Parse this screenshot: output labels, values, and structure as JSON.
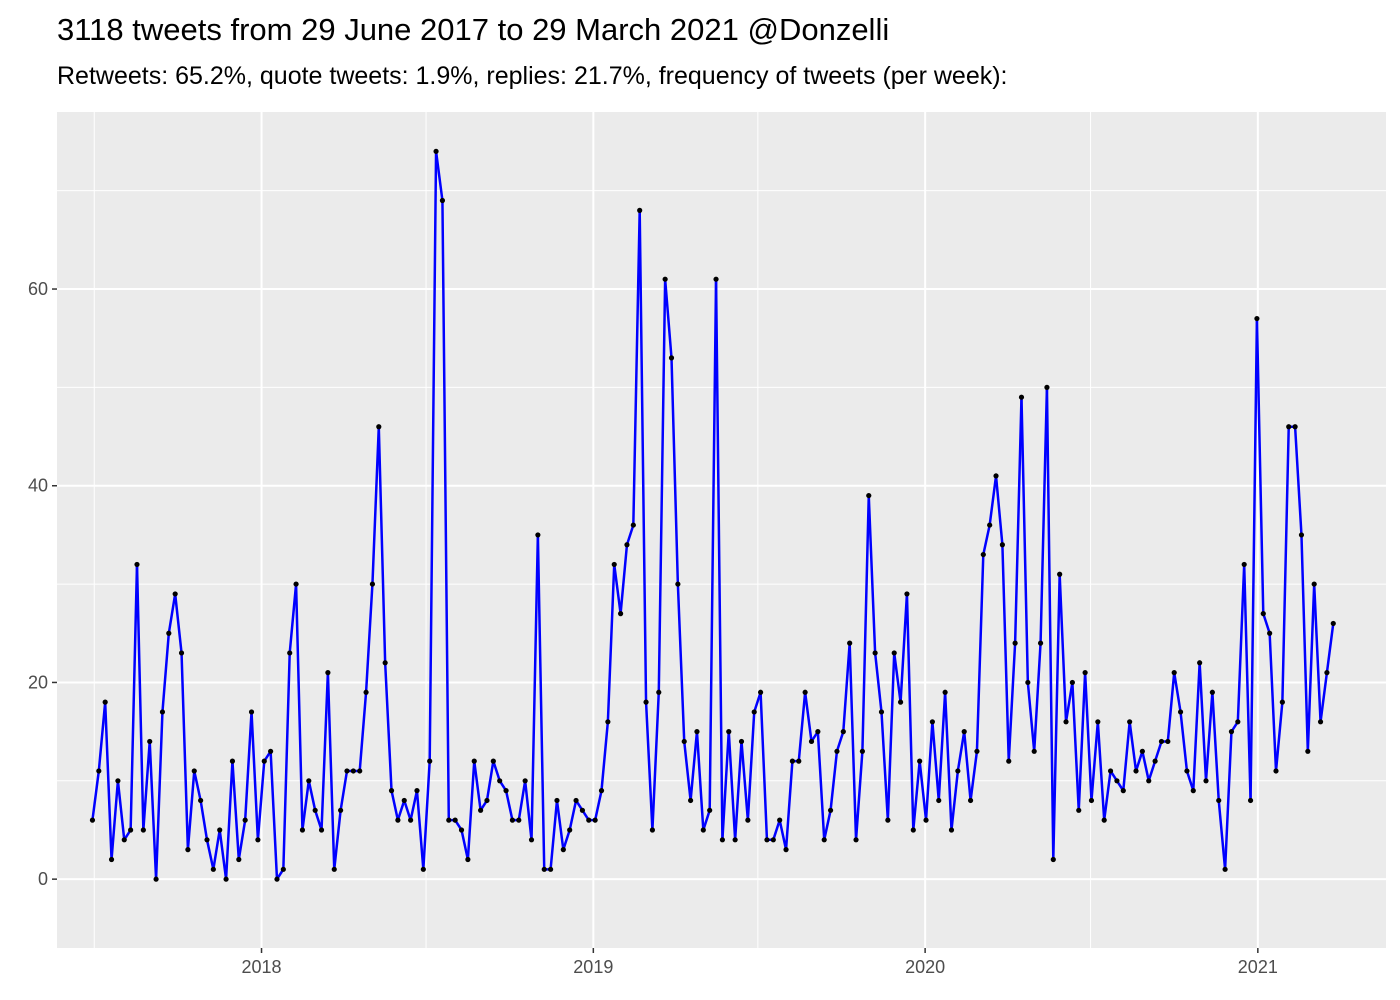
{
  "chart_data": {
    "type": "line",
    "title": "3118 tweets from 29 June 2017 to 29 March 2021 @Donzelli",
    "subtitle": "Retweets: 65.2%, quote tweets: 1.9%, replies: 21.7%, frequency of tweets (per week):",
    "xlabel": "",
    "ylabel": "",
    "x_ticks": [
      "2018",
      "2019",
      "2020",
      "2021"
    ],
    "y_ticks": [
      "0",
      "20",
      "40",
      "60"
    ],
    "xlim": [
      "2017-05-21",
      "2021-05-22"
    ],
    "ylim": [
      -7,
      78
    ],
    "grid": true,
    "colors": {
      "line": "#0000ff",
      "point": "#000000",
      "panel": "#ebebeb",
      "grid": "#ffffff"
    },
    "x": [
      "2017-06-29",
      "2017-07-06",
      "2017-07-13",
      "2017-07-20",
      "2017-07-27",
      "2017-08-03",
      "2017-08-10",
      "2017-08-17",
      "2017-08-24",
      "2017-08-31",
      "2017-09-07",
      "2017-09-14",
      "2017-09-21",
      "2017-09-28",
      "2017-10-05",
      "2017-10-12",
      "2017-10-19",
      "2017-10-26",
      "2017-11-02",
      "2017-11-09",
      "2017-11-16",
      "2017-11-23",
      "2017-11-30",
      "2017-12-07",
      "2017-12-14",
      "2017-12-21",
      "2017-12-28",
      "2018-01-04",
      "2018-01-11",
      "2018-01-18",
      "2018-01-25",
      "2018-02-01",
      "2018-02-08",
      "2018-02-15",
      "2018-02-22",
      "2018-03-01",
      "2018-03-08",
      "2018-03-15",
      "2018-03-22",
      "2018-03-29",
      "2018-04-05",
      "2018-04-12",
      "2018-04-19",
      "2018-04-26",
      "2018-05-03",
      "2018-05-10",
      "2018-05-17",
      "2018-05-24",
      "2018-05-31",
      "2018-06-07",
      "2018-06-14",
      "2018-06-21",
      "2018-06-28",
      "2018-07-05",
      "2018-07-12",
      "2018-07-19",
      "2018-07-26",
      "2018-08-02",
      "2018-08-09",
      "2018-08-16",
      "2018-08-23",
      "2018-08-30",
      "2018-09-06",
      "2018-09-13",
      "2018-09-20",
      "2018-09-27",
      "2018-10-04",
      "2018-10-11",
      "2018-10-18",
      "2018-10-25",
      "2018-11-01",
      "2018-11-08",
      "2018-11-15",
      "2018-11-22",
      "2018-11-29",
      "2018-12-06",
      "2018-12-13",
      "2018-12-20",
      "2018-12-27",
      "2019-01-03",
      "2019-01-10",
      "2019-01-17",
      "2019-01-24",
      "2019-01-31",
      "2019-02-07",
      "2019-02-14",
      "2019-02-21",
      "2019-02-28",
      "2019-03-07",
      "2019-03-14",
      "2019-03-21",
      "2019-03-28",
      "2019-04-04",
      "2019-04-11",
      "2019-04-18",
      "2019-04-25",
      "2019-05-02",
      "2019-05-09",
      "2019-05-16",
      "2019-05-23",
      "2019-05-30",
      "2019-06-06",
      "2019-06-13",
      "2019-06-20",
      "2019-06-27",
      "2019-07-04",
      "2019-07-11",
      "2019-07-18",
      "2019-07-25",
      "2019-08-01",
      "2019-08-08",
      "2019-08-15",
      "2019-08-22",
      "2019-08-29",
      "2019-09-05",
      "2019-09-12",
      "2019-09-19",
      "2019-09-26",
      "2019-10-03",
      "2019-10-10",
      "2019-10-17",
      "2019-10-24",
      "2019-10-31",
      "2019-11-07",
      "2019-11-14",
      "2019-11-21",
      "2019-11-28",
      "2019-12-05",
      "2019-12-12",
      "2019-12-19",
      "2019-12-26",
      "2020-01-02",
      "2020-01-09",
      "2020-01-16",
      "2020-01-23",
      "2020-01-30",
      "2020-02-06",
      "2020-02-13",
      "2020-02-20",
      "2020-02-27",
      "2020-03-05",
      "2020-03-12",
      "2020-03-19",
      "2020-03-26",
      "2020-04-02",
      "2020-04-09",
      "2020-04-16",
      "2020-04-23",
      "2020-04-30",
      "2020-05-07",
      "2020-05-14",
      "2020-05-21",
      "2020-05-28",
      "2020-06-04",
      "2020-06-11",
      "2020-06-18",
      "2020-06-25",
      "2020-07-02",
      "2020-07-09",
      "2020-07-16",
      "2020-07-23",
      "2020-07-30",
      "2020-08-06",
      "2020-08-13",
      "2020-08-20",
      "2020-08-27",
      "2020-09-03",
      "2020-09-10",
      "2020-09-17",
      "2020-09-24",
      "2020-10-01",
      "2020-10-08",
      "2020-10-15",
      "2020-10-22",
      "2020-10-29",
      "2020-11-05",
      "2020-11-12",
      "2020-11-19",
      "2020-11-26",
      "2020-12-03",
      "2020-12-10",
      "2020-12-17",
      "2020-12-24",
      "2020-12-31",
      "2021-01-07",
      "2021-01-14",
      "2021-01-21",
      "2021-01-28",
      "2021-02-04",
      "2021-02-11",
      "2021-02-18",
      "2021-02-25",
      "2021-03-04",
      "2021-03-11",
      "2021-03-18",
      "2021-03-25"
    ],
    "series": [
      {
        "values": [
          6,
          11,
          18,
          2,
          10,
          4,
          5,
          32,
          5,
          14,
          0,
          17,
          25,
          29,
          23,
          3,
          11,
          8,
          4,
          1,
          5,
          0,
          12,
          2,
          6,
          17,
          4,
          12,
          13,
          0,
          1,
          23,
          30,
          5,
          10,
          7,
          5,
          21,
          1,
          7,
          11,
          11,
          11,
          19,
          30,
          46,
          22,
          9,
          6,
          8,
          6,
          9,
          1,
          12,
          74,
          69,
          6,
          6,
          5,
          2,
          12,
          7,
          8,
          12,
          10,
          9,
          6,
          6,
          10,
          4,
          35,
          1,
          1,
          8,
          3,
          5,
          8,
          7,
          6,
          6,
          9,
          16,
          32,
          27,
          34,
          36,
          68,
          18,
          5,
          19,
          61,
          53,
          30,
          14,
          8,
          15,
          5,
          7,
          61,
          4,
          15,
          4,
          14,
          6,
          17,
          19,
          4,
          4,
          6,
          3,
          12,
          12,
          19,
          14,
          15,
          4,
          7,
          13,
          15,
          24,
          4,
          13,
          39,
          23,
          17,
          6,
          23,
          18,
          29,
          5,
          12,
          6,
          16,
          8,
          19,
          5,
          11,
          15,
          8,
          13,
          33,
          36,
          41,
          34,
          12,
          24,
          49,
          20,
          13,
          24,
          50,
          2,
          31,
          16,
          20,
          7,
          21,
          8,
          16,
          6,
          11,
          10,
          9,
          16,
          11,
          13,
          10,
          12,
          14,
          14,
          21,
          17,
          11,
          9,
          22,
          10,
          19,
          8,
          1,
          15,
          16,
          32,
          8,
          57,
          27,
          25,
          11,
          18,
          46,
          46,
          35,
          13,
          30,
          16,
          21,
          26
        ]
      }
    ]
  }
}
